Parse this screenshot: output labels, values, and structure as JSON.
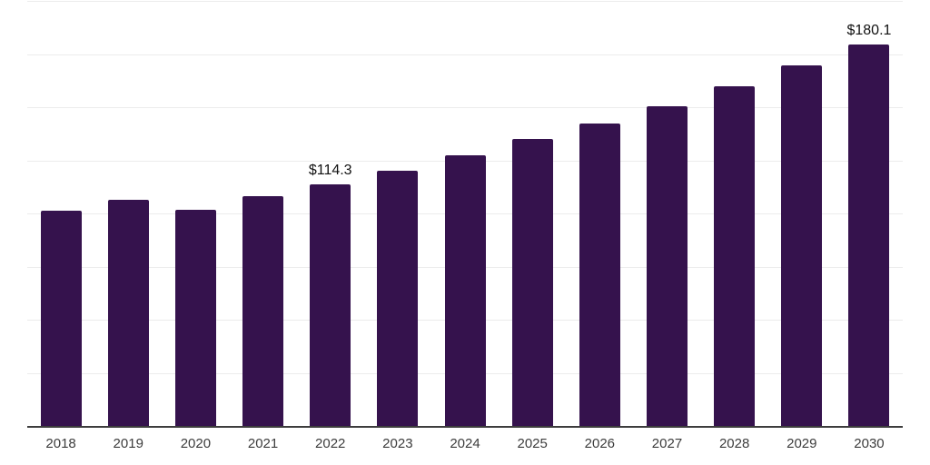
{
  "chart_data": {
    "type": "bar",
    "title": "",
    "xlabel": "",
    "ylabel": "",
    "categories": [
      "2018",
      "2019",
      "2020",
      "2021",
      "2022",
      "2023",
      "2024",
      "2025",
      "2026",
      "2027",
      "2028",
      "2029",
      "2030"
    ],
    "values": [
      101.8,
      106.9,
      102.3,
      108.5,
      114.3,
      120.7,
      127.9,
      135.3,
      142.7,
      151.0,
      160.3,
      170.0,
      180.1
    ],
    "data_labels": [
      "",
      "",
      "",
      "",
      "$114.3",
      "",
      "",
      "",
      "",
      "",
      "",
      "",
      "$180.1"
    ],
    "ylim": [
      0,
      200
    ],
    "gridline_step": 25,
    "grid": true,
    "legend": false,
    "colors": {
      "bar_fill": "#35124D",
      "gridline": "#ececec",
      "axis_line": "#3d3d3d",
      "tick_label": "#3c3c3c",
      "data_label": "#111111",
      "background": "#ffffff"
    }
  }
}
